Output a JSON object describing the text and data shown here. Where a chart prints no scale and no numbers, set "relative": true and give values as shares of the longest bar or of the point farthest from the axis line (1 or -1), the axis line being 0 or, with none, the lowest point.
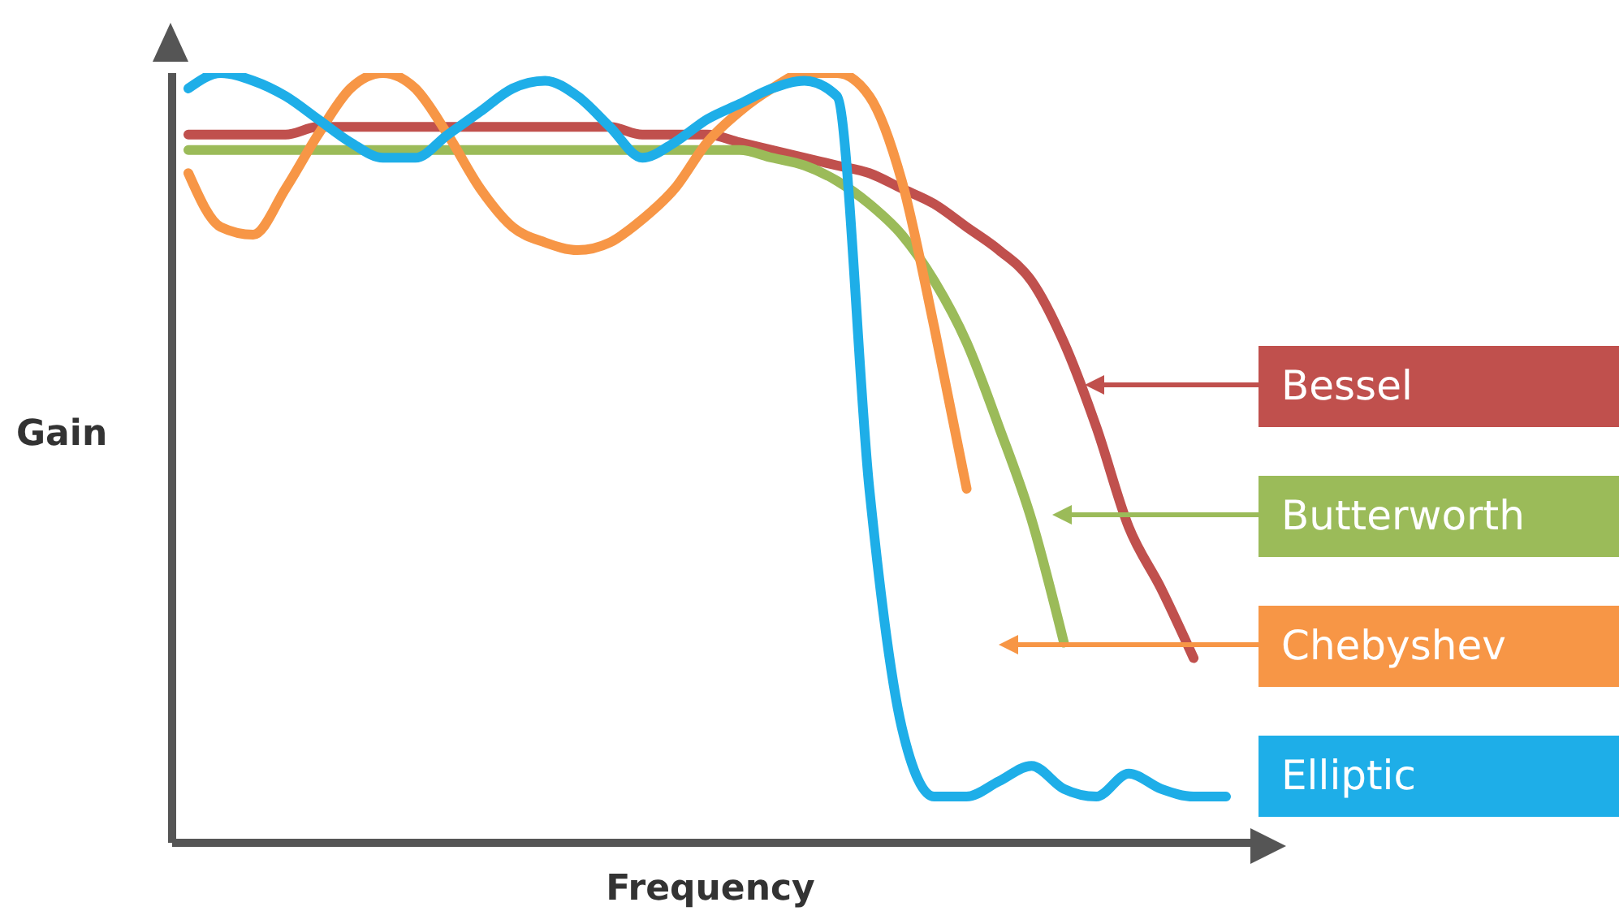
{
  "chart_data": {
    "type": "line",
    "relative": true,
    "xlabel": "Frequency",
    "ylabel": "Gain",
    "legend": "right",
    "categories": [
      null,
      null,
      null,
      null,
      null,
      null,
      null,
      null,
      null,
      null,
      null,
      null,
      null,
      null,
      null,
      null,
      null,
      null,
      null,
      null,
      null,
      null,
      null,
      null,
      null,
      null,
      null,
      null,
      null,
      null,
      null,
      null,
      null
    ],
    "series": [
      {
        "name": "Bessel",
        "color": "#c0504d",
        "values": [
          0.92,
          0.92,
          0.92,
          0.92,
          0.93,
          0.93,
          0.93,
          0.93,
          0.93,
          0.93,
          0.93,
          0.93,
          0.93,
          0.93,
          0.92,
          0.92,
          0.92,
          0.91,
          0.9,
          0.89,
          0.88,
          0.87,
          0.85,
          0.83,
          0.8,
          0.77,
          0.73,
          0.65,
          0.54,
          0.41,
          0.33,
          0.24,
          null
        ]
      },
      {
        "name": "Butterworth",
        "color": "#9bbb59",
        "values": [
          0.9,
          0.9,
          0.9,
          0.9,
          0.9,
          0.9,
          0.9,
          0.9,
          0.9,
          0.9,
          0.9,
          0.9,
          0.9,
          0.9,
          0.9,
          0.9,
          0.9,
          0.9,
          0.89,
          0.88,
          0.86,
          0.83,
          0.79,
          0.73,
          0.65,
          0.54,
          0.42,
          0.26,
          null,
          null,
          null,
          null,
          null
        ]
      },
      {
        "name": "Chebyshev",
        "color": "#f79646",
        "values": [
          0.87,
          0.8,
          0.79,
          0.85,
          0.92,
          0.98,
          1.0,
          0.98,
          0.92,
          0.85,
          0.8,
          0.78,
          0.77,
          0.78,
          0.81,
          0.85,
          0.91,
          0.95,
          0.98,
          1.0,
          1.0,
          0.97,
          0.86,
          0.67,
          0.46,
          null,
          null,
          null,
          null,
          null,
          null,
          null,
          null
        ]
      },
      {
        "name": "Elliptic",
        "color": "#1eaee8",
        "values": [
          0.98,
          1.0,
          0.99,
          0.97,
          0.94,
          0.91,
          0.89,
          0.89,
          0.92,
          0.95,
          0.98,
          0.99,
          0.97,
          0.93,
          0.89,
          0.91,
          0.94,
          0.96,
          0.98,
          0.99,
          0.97,
          0.46,
          0.15,
          0.06,
          0.06,
          0.08,
          0.1,
          0.07,
          0.06,
          0.09,
          0.07,
          0.06,
          0.06
        ]
      }
    ]
  }
}
